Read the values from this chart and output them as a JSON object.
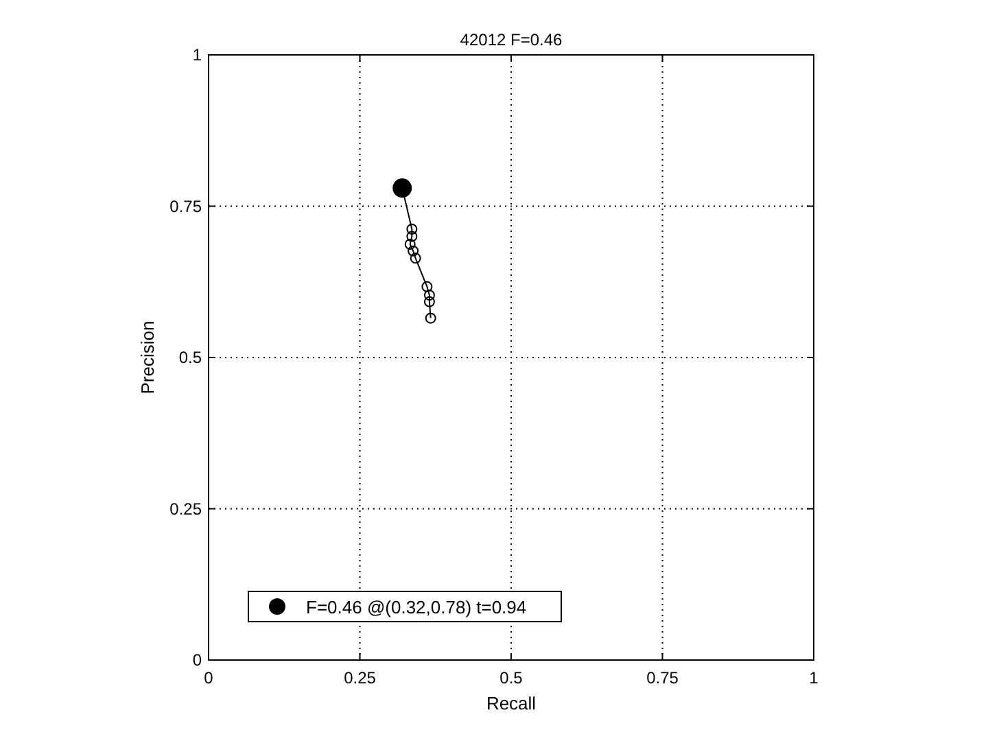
{
  "chart_data": {
    "type": "line",
    "title": "42012 F=0.46",
    "xlabel": "Recall",
    "ylabel": "Precision",
    "xlim": [
      0,
      1
    ],
    "ylim": [
      0,
      1
    ],
    "xticks": [
      0,
      0.25,
      0.5,
      0.75,
      1
    ],
    "yticks": [
      0,
      0.25,
      0.5,
      0.75,
      1
    ],
    "grid": true,
    "legend": "bottom left",
    "series": [
      {
        "color": "#000000",
        "marker": "circle",
        "x": [
          0.32,
          0.336,
          0.336,
          0.333,
          0.338,
          0.342,
          0.361,
          0.365,
          0.365,
          0.367
        ],
        "values": [
          0.78,
          0.712,
          0.7,
          0.687,
          0.676,
          0.664,
          0.617,
          0.603,
          0.592,
          0.565
        ]
      },
      {
        "type": "scatter",
        "name": "F=0.46 @(0.32,0.78) t=0.94",
        "color": "#000000",
        "marker": "circle",
        "x": [
          0.32
        ],
        "values": [
          0.78
        ]
      }
    ]
  }
}
